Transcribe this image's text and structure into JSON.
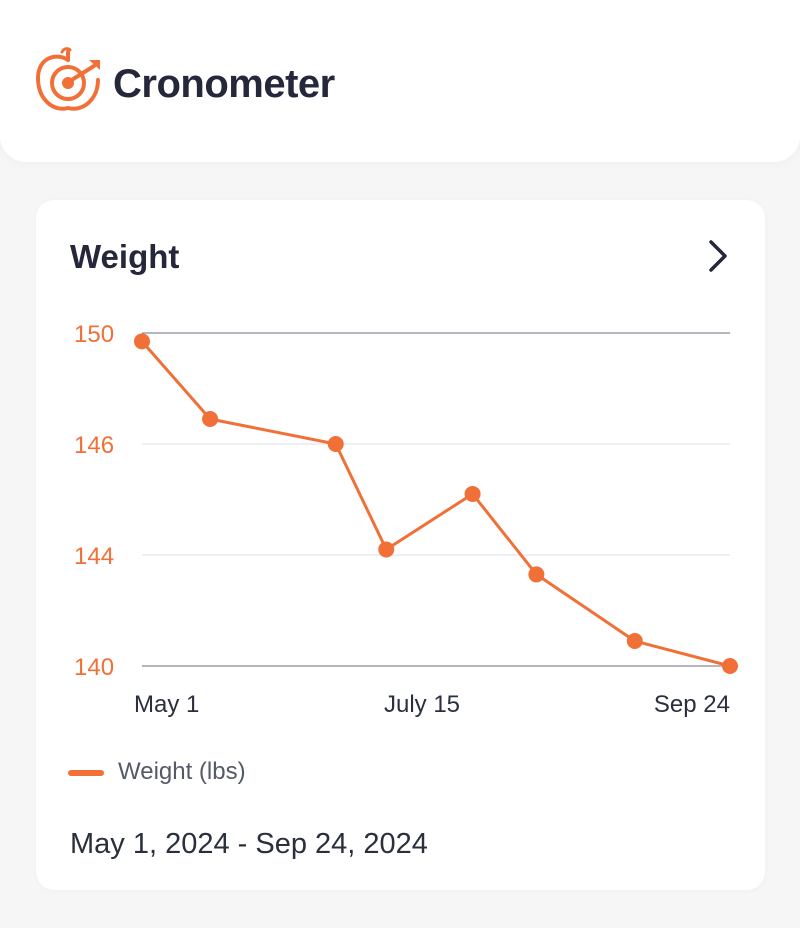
{
  "header": {
    "brand": "Cronometer"
  },
  "card": {
    "title": "Weight",
    "legend_label": "Weight (lbs)",
    "date_range": "May 1, 2024 - Sep 24, 2024"
  },
  "colors": {
    "accent": "#f07038",
    "text": "#24283a",
    "axis": "#9b9faa"
  },
  "icons": {
    "logo": "apple-target-icon",
    "navigate": "chevron-right-icon"
  },
  "chart_data": {
    "type": "line",
    "series": [
      {
        "name": "Weight (lbs)",
        "values": [
          149.7,
          146.9,
          146.0,
          144.1,
          145.1,
          143.3,
          140.9,
          139.3
        ]
      }
    ],
    "x_positions": [
      0,
      0.1158,
      0.3295,
      0.4154,
      0.5622,
      0.6707,
      0.8381,
      1.0
    ],
    "x_tick_labels": [
      "May 1",
      "July 15",
      "Sep 24"
    ],
    "y_tick_labels": [
      "150",
      "146",
      "144",
      "140"
    ],
    "y_tick_values": [
      150,
      146,
      144,
      140
    ],
    "ylim": [
      139,
      150
    ],
    "grid": true
  }
}
